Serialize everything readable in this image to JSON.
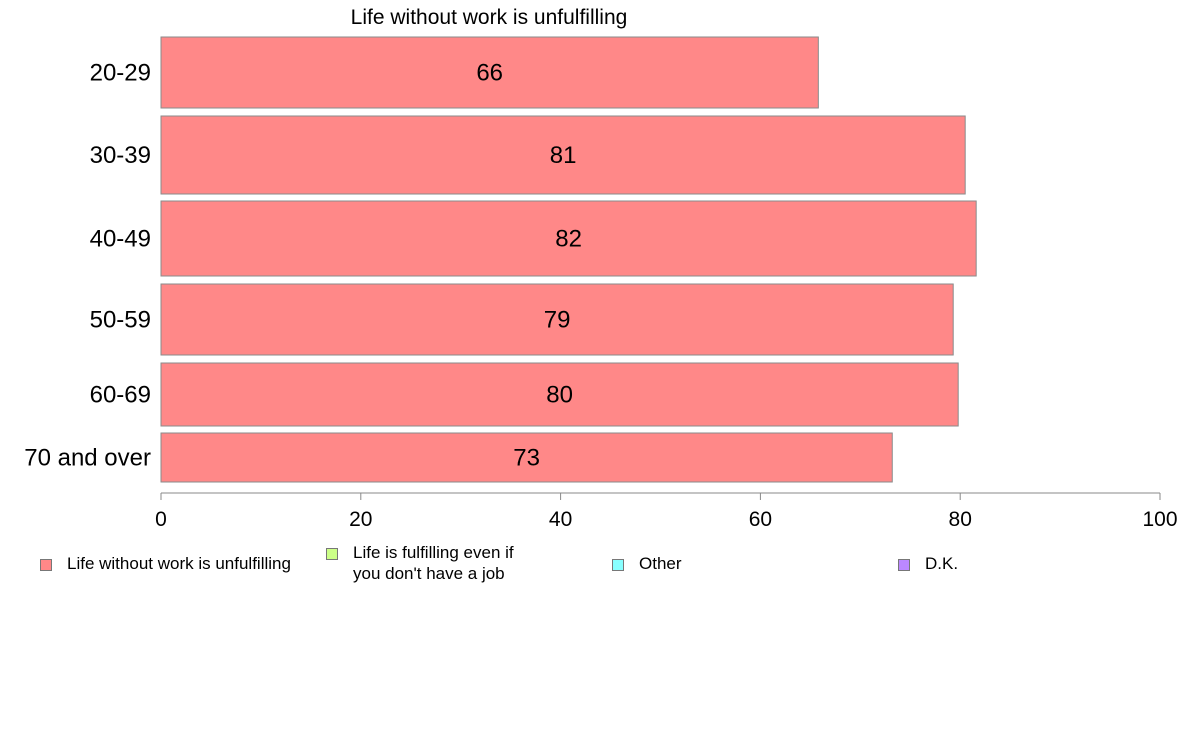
{
  "chart_data": {
    "type": "bar",
    "orientation": "horizontal",
    "title": "Life without work is unfulfilling",
    "categories": [
      "20-29",
      "30-39",
      "40-49",
      "50-59",
      "60-69",
      "70 and over"
    ],
    "series": [
      {
        "name": "Life without work is unfulfilling",
        "values": [
          66,
          81,
          82,
          79,
          80,
          73
        ],
        "plotted_values": [
          65.8,
          80.5,
          81.6,
          79.3,
          79.8,
          73.2
        ],
        "color": "#ff8888"
      }
    ],
    "xlim": [
      0,
      100
    ],
    "xticks": [
      0,
      20,
      40,
      60,
      80,
      100
    ],
    "legend": {
      "placement": "bottom",
      "items": [
        {
          "label": "Life without work is unfulfilling",
          "color": "#ff8888"
        },
        {
          "label": "Life is fulfilling even if\nyou don't have a job",
          "color": "#ccff88"
        },
        {
          "label": "Other",
          "color": "#88ffff"
        },
        {
          "label": "D.K.",
          "color": "#bb88ff"
        }
      ]
    },
    "grid": false
  }
}
